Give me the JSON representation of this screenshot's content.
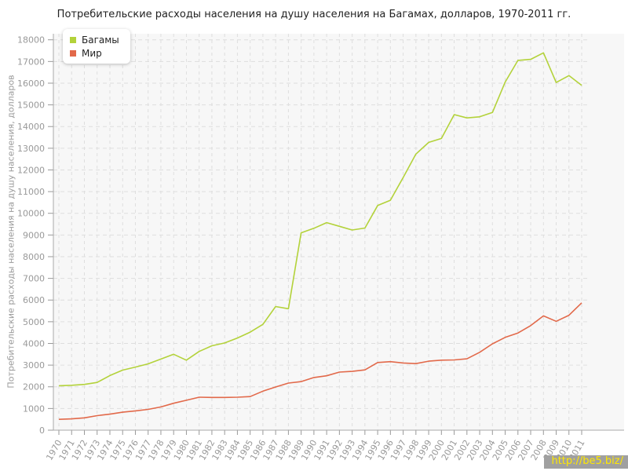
{
  "page": {
    "watermark": "http://be5.biz/"
  },
  "chart_data": {
    "type": "line",
    "title": "Потребительские расходы населения на душу населения на Багамах, долларов, 1970-2011 гг.",
    "xlabel": "",
    "ylabel": "Потребительские расходы населения на душу населения, долларов",
    "x": [
      1970,
      1971,
      1972,
      1973,
      1974,
      1975,
      1976,
      1977,
      1978,
      1979,
      1980,
      1981,
      1982,
      1983,
      1984,
      1985,
      1986,
      1987,
      1988,
      1989,
      1990,
      1991,
      1992,
      1993,
      1994,
      1995,
      1996,
      1997,
      1998,
      1999,
      2000,
      2001,
      2002,
      2003,
      2004,
      2005,
      2006,
      2007,
      2008,
      2009,
      2010,
      2011
    ],
    "series": [
      {
        "id": "bahamas",
        "name": "Багамы",
        "color": "#b3d23a",
        "values": [
          2050,
          2070,
          2110,
          2200,
          2520,
          2770,
          2910,
          3060,
          3280,
          3500,
          3230,
          3630,
          3890,
          4020,
          4250,
          4520,
          4880,
          5700,
          5600,
          9100,
          9310,
          9570,
          9400,
          9230,
          9320,
          10360,
          10600,
          11650,
          12730,
          13270,
          13450,
          14550,
          14400,
          14450,
          14650,
          16050,
          17050,
          17100,
          17400,
          16030,
          16350,
          15900
        ]
      },
      {
        "id": "world",
        "name": "Мир",
        "color": "#e2694a",
        "values": [
          500,
          520,
          570,
          670,
          740,
          830,
          890,
          960,
          1070,
          1240,
          1380,
          1520,
          1510,
          1510,
          1520,
          1550,
          1800,
          1990,
          2170,
          2240,
          2430,
          2510,
          2680,
          2710,
          2780,
          3120,
          3160,
          3100,
          3070,
          3180,
          3230,
          3240,
          3290,
          3590,
          3980,
          4280,
          4480,
          4820,
          5270,
          5020,
          5300,
          5870
        ]
      }
    ],
    "ylim": [
      0,
      18000
    ],
    "ytick_step": 1000,
    "grid": true,
    "legend_position": "top-left",
    "colors": {
      "plot_bg": "#f7f7f7",
      "grid": "#dedede",
      "axis": "#aaaaaa",
      "tick": "#999999",
      "tick_label": "#999999",
      "title": "#222222",
      "watermark_bg": "#a0a0a0",
      "watermark_text": "#ffe800"
    }
  }
}
